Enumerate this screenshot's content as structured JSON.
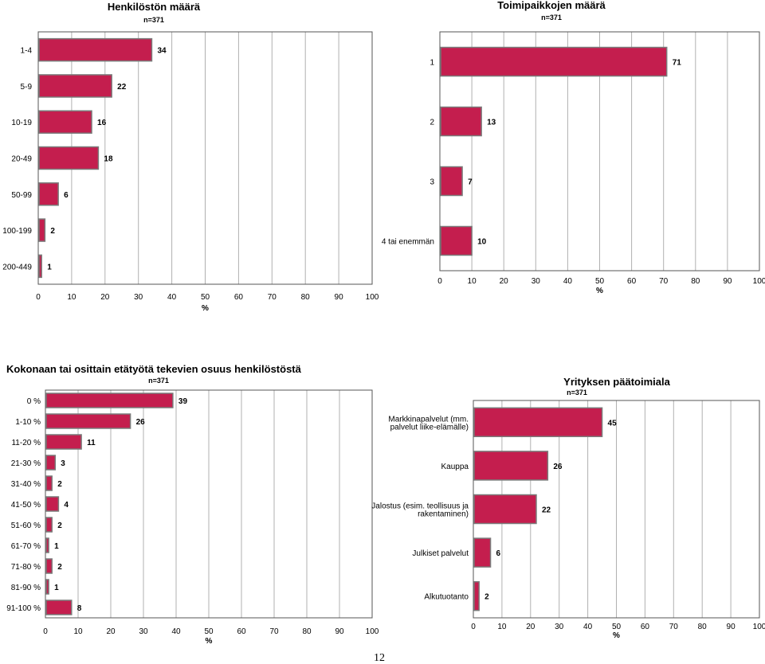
{
  "page_number": "12",
  "chart_data": [
    {
      "type": "bar",
      "orientation": "horizontal",
      "title": "Henkilöstön määrä",
      "subtitle": "n=371",
      "xlabel": "%",
      "ylabel": "",
      "xlim": [
        0,
        100
      ],
      "ticks": [
        "0",
        "10",
        "20",
        "30",
        "40",
        "50",
        "60",
        "70",
        "80",
        "90",
        "100"
      ],
      "grid": true,
      "categories": [
        "1-4",
        "5-9",
        "10-19",
        "20-49",
        "50-99",
        "100-199",
        "200-449"
      ],
      "values": [
        34,
        22,
        16,
        18,
        6,
        2,
        1
      ],
      "value_labels": [
        "34",
        "22",
        "16",
        "18",
        "6",
        "2",
        "1"
      ],
      "bar_color": "#c41e4e"
    },
    {
      "type": "bar",
      "orientation": "horizontal",
      "title": "Toimipaikkojen määrä",
      "subtitle": "n=371",
      "xlabel": "%",
      "ylabel": "",
      "xlim": [
        0,
        100
      ],
      "ticks": [
        "0",
        "10",
        "20",
        "30",
        "40",
        "50",
        "60",
        "70",
        "80",
        "90",
        "100"
      ],
      "grid": true,
      "categories": [
        "1",
        "2",
        "3",
        "4 tai enemmän"
      ],
      "values": [
        71,
        13,
        7,
        10
      ],
      "value_labels": [
        "71",
        "13",
        "7",
        "10"
      ],
      "bar_color": "#c41e4e"
    },
    {
      "type": "bar",
      "orientation": "horizontal",
      "title": "Kokonaan tai osittain etätyötä tekevien osuus henkilöstöstä",
      "subtitle": "n=371",
      "xlabel": "%",
      "ylabel": "",
      "xlim": [
        0,
        100
      ],
      "ticks": [
        "0",
        "10",
        "20",
        "30",
        "40",
        "50",
        "60",
        "70",
        "80",
        "90",
        "100"
      ],
      "grid": true,
      "categories": [
        "0 %",
        "1-10 %",
        "11-20 %",
        "21-30 %",
        "31-40 %",
        "41-50 %",
        "51-60 %",
        "61-70 %",
        "71-80 %",
        "81-90 %",
        "91-100 %"
      ],
      "values": [
        39,
        26,
        11,
        3,
        2,
        4,
        2,
        1,
        2,
        1,
        8
      ],
      "value_labels": [
        "39",
        "26",
        "11",
        "3",
        "2",
        "4",
        "2",
        "1",
        "2",
        "1",
        "8"
      ],
      "bar_color": "#c41e4e"
    },
    {
      "type": "bar",
      "orientation": "horizontal",
      "title": "Yrityksen päätoimiala",
      "subtitle": "n=371",
      "xlabel": "%",
      "ylabel": "",
      "xlim": [
        0,
        100
      ],
      "ticks": [
        "0",
        "10",
        "20",
        "30",
        "40",
        "50",
        "60",
        "70",
        "80",
        "90",
        "100"
      ],
      "grid": true,
      "categories": [
        [
          "Markkinapalvelut (mm.",
          "palvelut liike-elämälle)"
        ],
        [
          "Kauppa"
        ],
        [
          "Jalostus (esim. teollisuus ja",
          "rakentaminen)"
        ],
        [
          "Julkiset palvelut"
        ],
        [
          "Alkutuotanto"
        ]
      ],
      "values": [
        45,
        26,
        22,
        6,
        2
      ],
      "value_labels": [
        "45",
        "26",
        "22",
        "6",
        "2"
      ],
      "bar_color": "#c41e4e"
    }
  ]
}
